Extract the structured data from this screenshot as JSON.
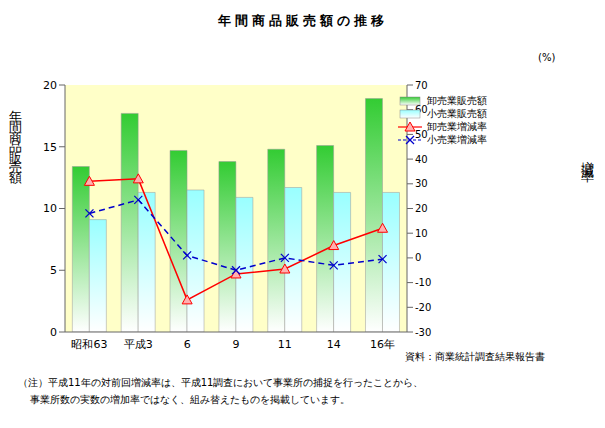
{
  "chart_data": {
    "type": "bar",
    "title": "年間商品販売額の推移",
    "y_label": "年間商品販売額",
    "y2_label": "増減率",
    "y2_unit": "(%)",
    "source": "資料：商業統計調査結果報告書",
    "note_lines": [
      "（注）平成11年の対前回増減率は、平成11調査において事業所の捕捉を行ったことから、",
      "事業所数の実数の増加率ではなく、組み替えたものを掲載しています。"
    ],
    "categories": [
      "昭和63",
      "平成3",
      "6",
      "9",
      "11",
      "14",
      "16年"
    ],
    "series": [
      {
        "name": "卸売業販売額",
        "type": "bar",
        "color": "#33cc33",
        "values": [
          13.4,
          17.7,
          14.7,
          13.8,
          14.8,
          15.1,
          18.9
        ]
      },
      {
        "name": "小売業販売額",
        "type": "bar",
        "color": "#99ffff",
        "values": [
          9.1,
          11.3,
          11.5,
          10.9,
          11.7,
          11.3,
          11.3
        ]
      },
      {
        "name": "卸売業増減率",
        "type": "line",
        "axis": "y2",
        "color": "#ff0000",
        "marker": "triangle",
        "line_style": "solid",
        "values": [
          31,
          32,
          -17,
          -6.5,
          -4.5,
          5,
          12
        ]
      },
      {
        "name": "小売業増減率",
        "type": "line",
        "axis": "y2",
        "color": "#0000cc",
        "marker": "x",
        "line_style": "dashed",
        "values": [
          18,
          23.5,
          1,
          -5,
          0,
          -3,
          -0.5
        ]
      }
    ],
    "ylim": [
      0,
      20
    ],
    "yticks": [
      0,
      5,
      10,
      15,
      20
    ],
    "y2lim": [
      -30,
      70
    ],
    "y2ticks": [
      -30,
      -20,
      -10,
      0,
      10,
      20,
      30,
      40,
      50,
      60,
      70
    ],
    "grid": false,
    "legend": "upper right"
  }
}
